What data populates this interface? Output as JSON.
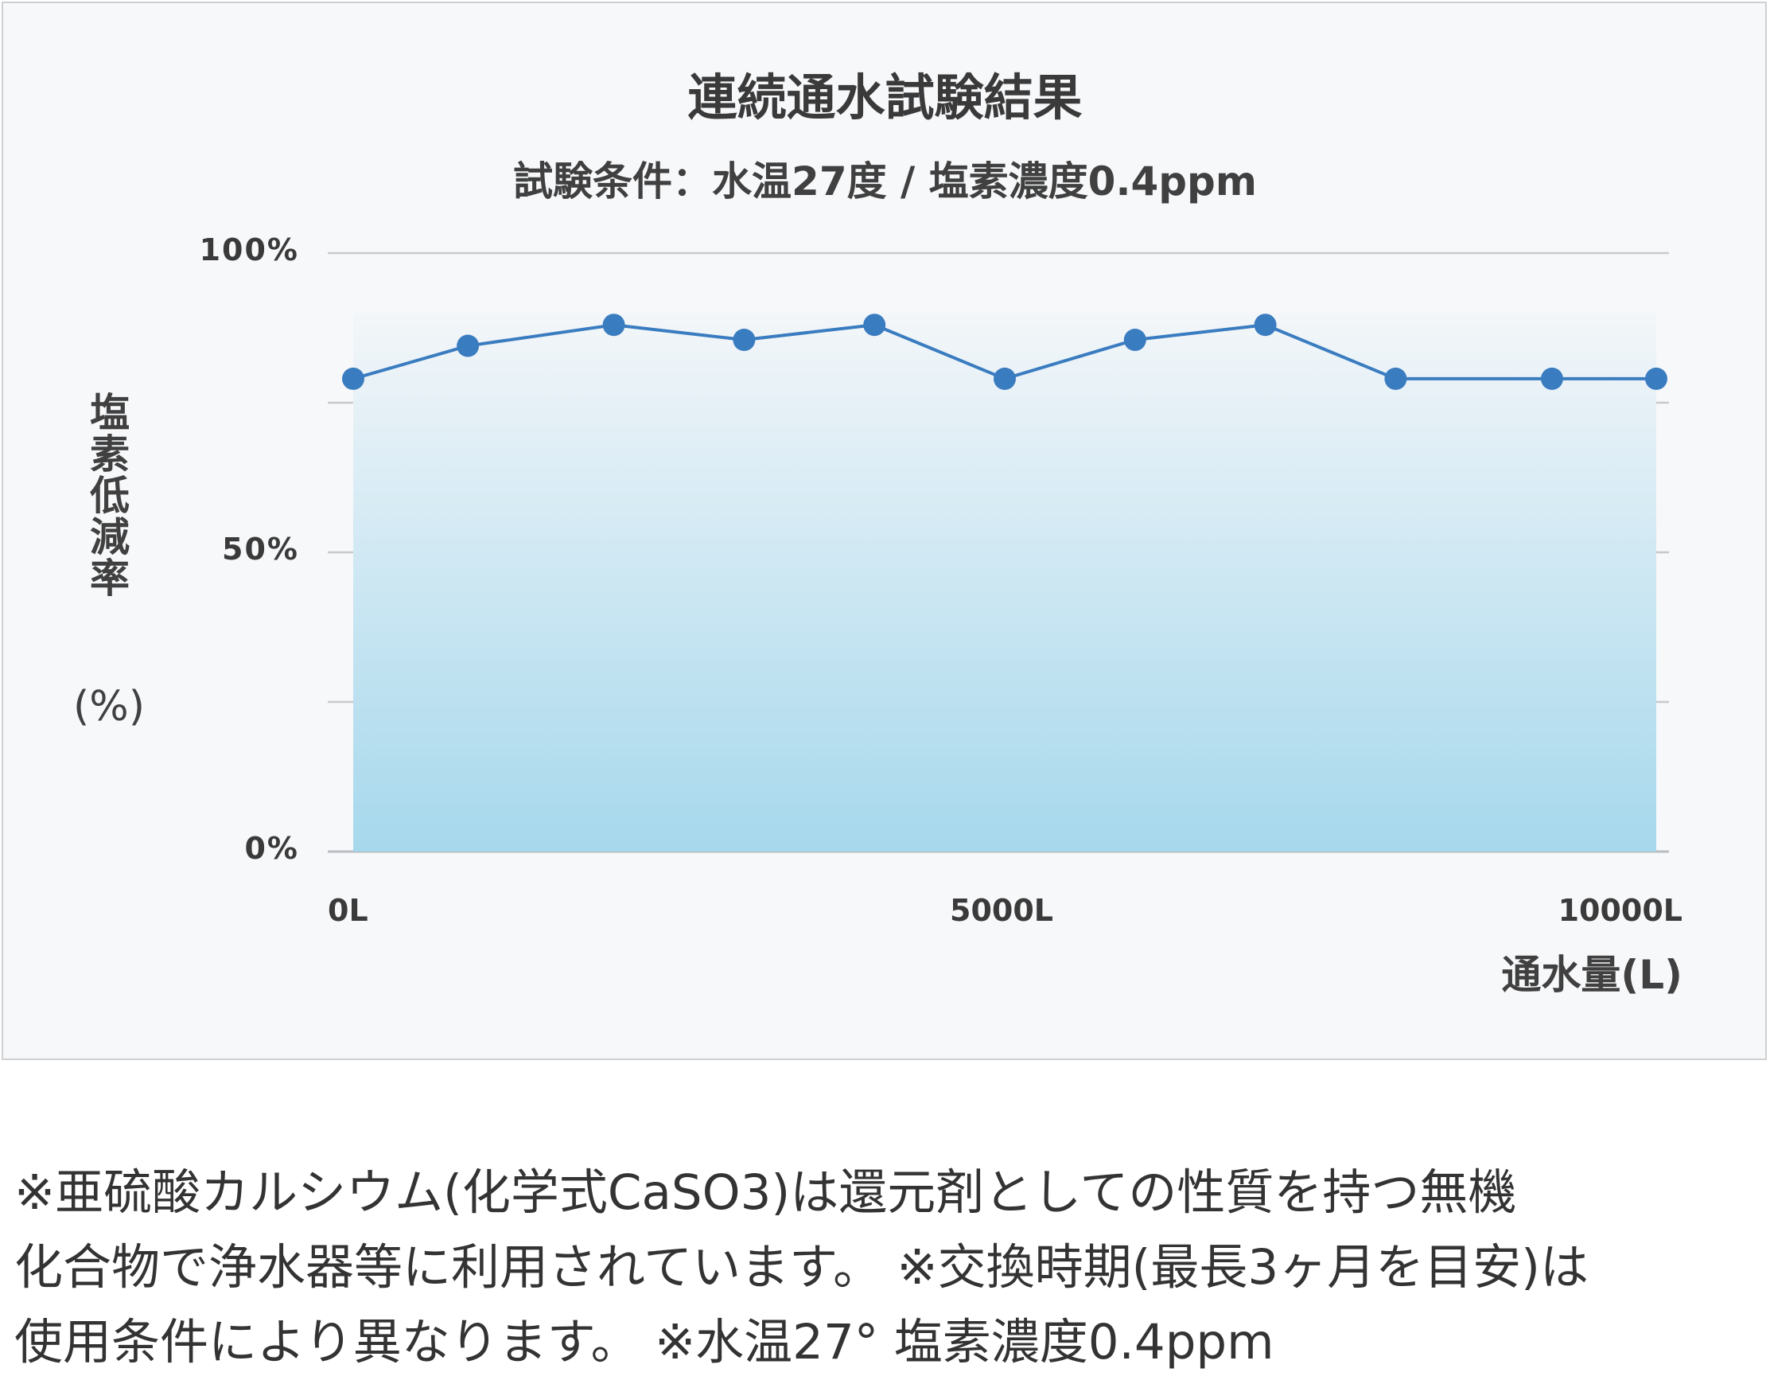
{
  "chart_data": {
    "type": "area",
    "title": "連続通水試験結果",
    "subtitle": "試験条件：水温27度 / 塩素濃度0.4ppm",
    "ylabel": "塩素低減率",
    "ylabel_unit": "(%)",
    "xlabel": "通水量(L)",
    "ylim": [
      0,
      100
    ],
    "xlim": [
      0,
      10000
    ],
    "yticks": [
      {
        "value": 100,
        "label": "100%"
      },
      {
        "value": 75,
        "label": ""
      },
      {
        "value": 50,
        "label": "50%"
      },
      {
        "value": 25,
        "label": ""
      },
      {
        "value": 0,
        "label": "0%"
      }
    ],
    "xticks": [
      {
        "value": 0,
        "label": "0L"
      },
      {
        "value": 5000,
        "label": "5000L"
      },
      {
        "value": 10000,
        "label": "10000L"
      }
    ],
    "grid": true,
    "line_color": "#3a7cc0",
    "fill_top_color": "#f3f6f9",
    "fill_bottom_color": "#a6d8ec",
    "series": [
      {
        "x": [
          0,
          880,
          2000,
          3000,
          4000,
          5000,
          6000,
          7000,
          8000,
          9200,
          10000
        ],
        "values": [
          79,
          84.5,
          88,
          85.5,
          88,
          79,
          85.5,
          88,
          79,
          79,
          79
        ]
      }
    ]
  },
  "footnote": "※亜硫酸カルシウム(化学式CaSO3)は還元剤としての性質を持つ無機\n化合物で浄水器等に利用されています。 ※交換時期(最長3ヶ月を目安)は\n使用条件により異なります。 ※水温27° 塩素濃度0.4ppm"
}
